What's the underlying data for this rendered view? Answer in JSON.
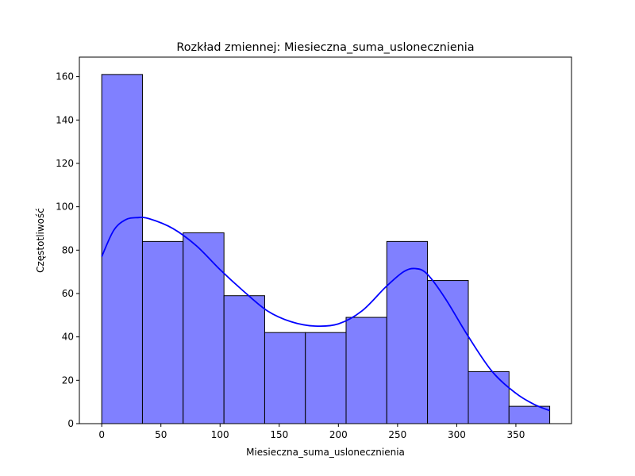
{
  "chart_data": {
    "type": "bar",
    "title": "Rozkład zmiennej: Miesieczna_suma_uslonecznienia",
    "xlabel": "Miesieczna_suma_uslonecznienia",
    "ylabel": "Częstotliwość",
    "xlim": [
      -18.9,
      397.0
    ],
    "ylim": [
      0,
      169
    ],
    "xticks": [
      0,
      50,
      100,
      150,
      200,
      250,
      300,
      350
    ],
    "yticks": [
      0,
      20,
      40,
      60,
      80,
      100,
      120,
      140,
      160
    ],
    "bins": [
      {
        "x0": 0.0,
        "x1": 34.4,
        "count": 161
      },
      {
        "x0": 34.4,
        "x1": 68.8,
        "count": 84
      },
      {
        "x0": 68.8,
        "x1": 103.3,
        "count": 88
      },
      {
        "x0": 103.3,
        "x1": 137.7,
        "count": 59
      },
      {
        "x0": 137.7,
        "x1": 172.1,
        "count": 42
      },
      {
        "x0": 172.1,
        "x1": 206.5,
        "count": 42
      },
      {
        "x0": 206.5,
        "x1": 240.9,
        "count": 49
      },
      {
        "x0": 240.9,
        "x1": 275.3,
        "count": 84
      },
      {
        "x0": 275.3,
        "x1": 309.8,
        "count": 66
      },
      {
        "x0": 309.8,
        "x1": 344.2,
        "count": 24
      },
      {
        "x0": 344.2,
        "x1": 378.6,
        "count": 8
      }
    ],
    "kde": {
      "x": [
        0,
        10,
        20,
        30,
        40,
        60,
        80,
        100,
        120,
        140,
        160,
        180,
        200,
        220,
        240,
        255,
        265,
        275,
        290,
        310,
        330,
        350,
        365,
        378.6
      ],
      "y": [
        77,
        89,
        94,
        95,
        94.5,
        90,
        82,
        71,
        61,
        52,
        47,
        45,
        46,
        52,
        63,
        70,
        71.5,
        69,
        58,
        40,
        24,
        14,
        9,
        6
      ]
    },
    "bar_fill": "#8080ff",
    "bar_edge": "#000000",
    "kde_color": "#0000ff",
    "grid": false,
    "legend": "none"
  }
}
